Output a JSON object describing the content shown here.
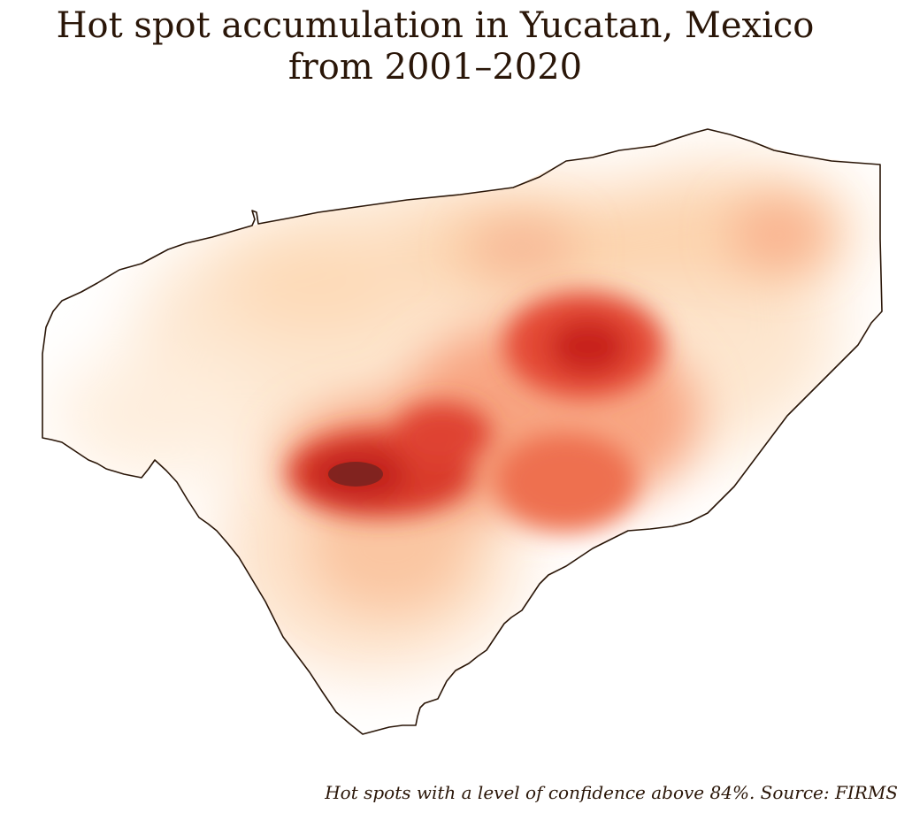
{
  "title": {
    "line1": "Hot spot accumulation in Yucatan, Mexico",
    "line2": "from 2001–2020"
  },
  "caption": "Hot spots with a level of confidence above 84%. Source: FIRMS",
  "map": {
    "region": "Yucatan, Mexico",
    "layer_type": "kernel density heatmap",
    "colormap": [
      "#fff3e6",
      "#fdd9b5",
      "#f9a87e",
      "#ef6c4a",
      "#c8231b",
      "#7a1f1f"
    ],
    "boundary_color": "#2a1608"
  }
}
